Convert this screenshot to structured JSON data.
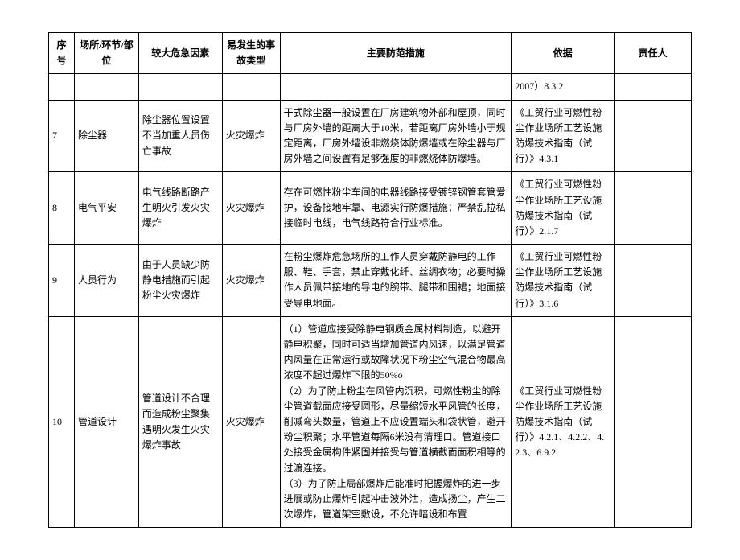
{
  "headers": [
    "序号",
    "场所/环节/部位",
    "较大危急因素",
    "易发生的事故类型",
    "主要防范措施",
    "依据",
    "责任人"
  ],
  "rows": [
    {
      "seq": "",
      "place": "",
      "factor": "",
      "type": "",
      "measure": "",
      "basis": "2007）8.3.2",
      "person": ""
    },
    {
      "seq": "7",
      "place": "除尘器",
      "factor": "除尘器位置设置不当加重人员伤亡事故",
      "type": "火灾爆炸",
      "measure": "干式除尘器一般设置在厂房建筑物外部和屋顶，同时与厂房外墙的距离大于10米，若距离厂房外墙小于规定距离，厂房外墙设非燃烧体防爆墙或在除尘器与厂房外墙之间设置有足够强度的非燃烧体防爆墙。",
      "basis": "《工贸行业可燃性粉尘作业场所工艺设施防爆技术指南（试行）》4.3.1",
      "person": ""
    },
    {
      "seq": "8",
      "place": "电气平安",
      "factor": "电气线路断路产生明火引发火灾爆炸",
      "type": "火灾爆炸",
      "measure": "存在可燃性粉尘车间的电器线路接受镀锌钢管套管爱护，设备接地牢靠、电源实行防爆措施；严禁乱拉私接临时电线，电气线路符合行业标准。",
      "basis": "《工贸行业可燃性粉尘作业场所工艺设施防爆技术指南（试行）》2.1.7",
      "person": ""
    },
    {
      "seq": "9",
      "place": "人员行为",
      "factor": "由于人员缺少防静电措施而引起粉尘火灾爆炸",
      "type": "火灾爆炸",
      "measure": "在粉尘爆炸危急场所的工作人员穿戴防静电的工作服、鞋、手套，禁止穿戴化纤、丝绸衣物；必要时操作人员佩带接地的导电的腕带、腿带和围裙；地面接受导电地面。",
      "basis": "《工贸行业可燃性粉尘作业场所工艺设施防爆技术指南（试行）》3.1.6",
      "person": ""
    },
    {
      "seq": "10",
      "place": "管道设计",
      "factor": "管道设计不合理而造成粉尘聚集遇明火发生火灾爆炸事故",
      "type": "火灾爆炸",
      "measure": "（1）管道应接受除静电钢质金属材料制造，以避开静电积聚，同时可适当增加管道内风速，以满足管道内风量在正常运行或故障状况下粉尘空气混合物最高浓度不超过爆炸下限的50%o\n（2）为了防止粉尘在风管内沉积，可燃性粉尘的除尘管道截面应接受圆形，尽量缩短水平风管的长度，削减弯头数量，管道上不应设置端头和袋状管，避开粉尘积聚；水平管道每隔6米没有清理口。管道接口处接受金属构件紧固并接受与管道横截面面积相等的过渡连接。\n（3）为了防止局部爆炸后能准时把握爆炸的进一步进展或防止爆炸引起冲击波外泄，造成扬尘，产生二次爆炸，管道架空敷设，不允许暗设和布置",
      "basis": "《工贸行业可燃性粉尘作业场所工艺设施防爆技术指南（试行）》4.2.1、4.2.2、4.2.3、6.9.2",
      "person": ""
    }
  ]
}
